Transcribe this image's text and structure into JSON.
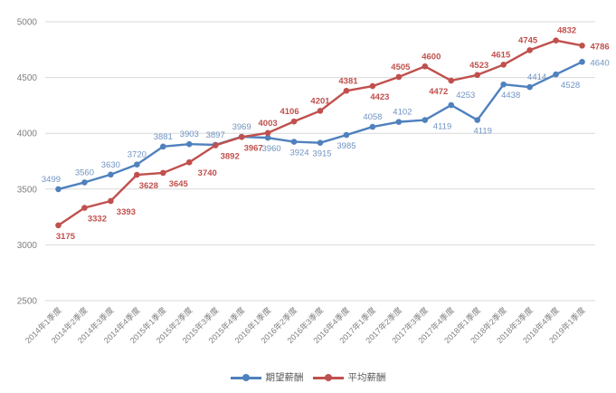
{
  "chart_data": {
    "type": "line",
    "title": "",
    "xlabel": "",
    "ylabel": "",
    "categories": [
      "2014年1季度",
      "2014年2季度",
      "2014年3季度",
      "2014年4季度",
      "2015年1季度",
      "2015年2季度",
      "2015年3季度",
      "2015年4季度",
      "2016年1季度",
      "2016年2季度",
      "2016年3季度",
      "2016年4季度",
      "2017年1季度",
      "2017年2季度",
      "2017年3季度",
      "2017年4季度",
      "2018年1季度",
      "2018年2季度",
      "2018年3季度",
      "2018年4季度",
      "2019年1季度"
    ],
    "series": [
      {
        "name": "期望薪酬",
        "color": "#4F81BD",
        "label_color": "#7093C2",
        "label_bold": false,
        "values": [
          3499,
          3560,
          3630,
          3720,
          3881,
          3903,
          3897,
          3969,
          3960,
          3924,
          3915,
          3985,
          4058,
          4102,
          4119,
          4253,
          4119,
          4438,
          4414,
          4528,
          4640
        ],
        "label_layout": {
          "positions": [
            "above",
            "above",
            "above",
            "above",
            "above",
            "above",
            "above",
            "above",
            "below",
            "below",
            "below",
            "below",
            "above",
            "above",
            "below-right",
            "above",
            "below",
            "below",
            "above",
            "below",
            "right"
          ],
          "dx": [
            -8,
            0,
            0,
            0,
            0,
            0,
            0,
            0,
            4,
            6,
            2,
            0,
            0,
            4,
            0,
            16,
            6,
            8,
            8,
            16,
            0
          ]
        }
      },
      {
        "name": "平均薪酬",
        "color": "#C0504D",
        "label_color": "#C0504D",
        "label_bold": true,
        "values": [
          3175,
          3332,
          3393,
          3628,
          3645,
          3740,
          3892,
          3967,
          4003,
          4106,
          4201,
          4381,
          4423,
          4505,
          4600,
          4472,
          4523,
          4615,
          4745,
          4832,
          4786
        ],
        "label_layout": {
          "positions": [
            "below",
            "below",
            "below",
            "below",
            "below",
            "below",
            "below",
            "below",
            "above",
            "above",
            "above",
            "above",
            "below",
            "above",
            "above",
            "below",
            "above",
            "above",
            "above",
            "above",
            "right"
          ],
          "dx": [
            8,
            14,
            17,
            13,
            17,
            20,
            16,
            13,
            0,
            -5,
            0,
            2,
            8,
            2,
            7,
            -14,
            2,
            -3,
            -2,
            12,
            0
          ]
        }
      }
    ],
    "ylim": [
      2500,
      5000
    ],
    "yticks": [
      2500,
      3000,
      3500,
      4000,
      4500,
      5000
    ],
    "grid": "horizontal-only",
    "gridline_color": "#D9D9D9",
    "axis_label_color": "#808080",
    "legend_position": "bottom-center",
    "marker": "circle"
  }
}
